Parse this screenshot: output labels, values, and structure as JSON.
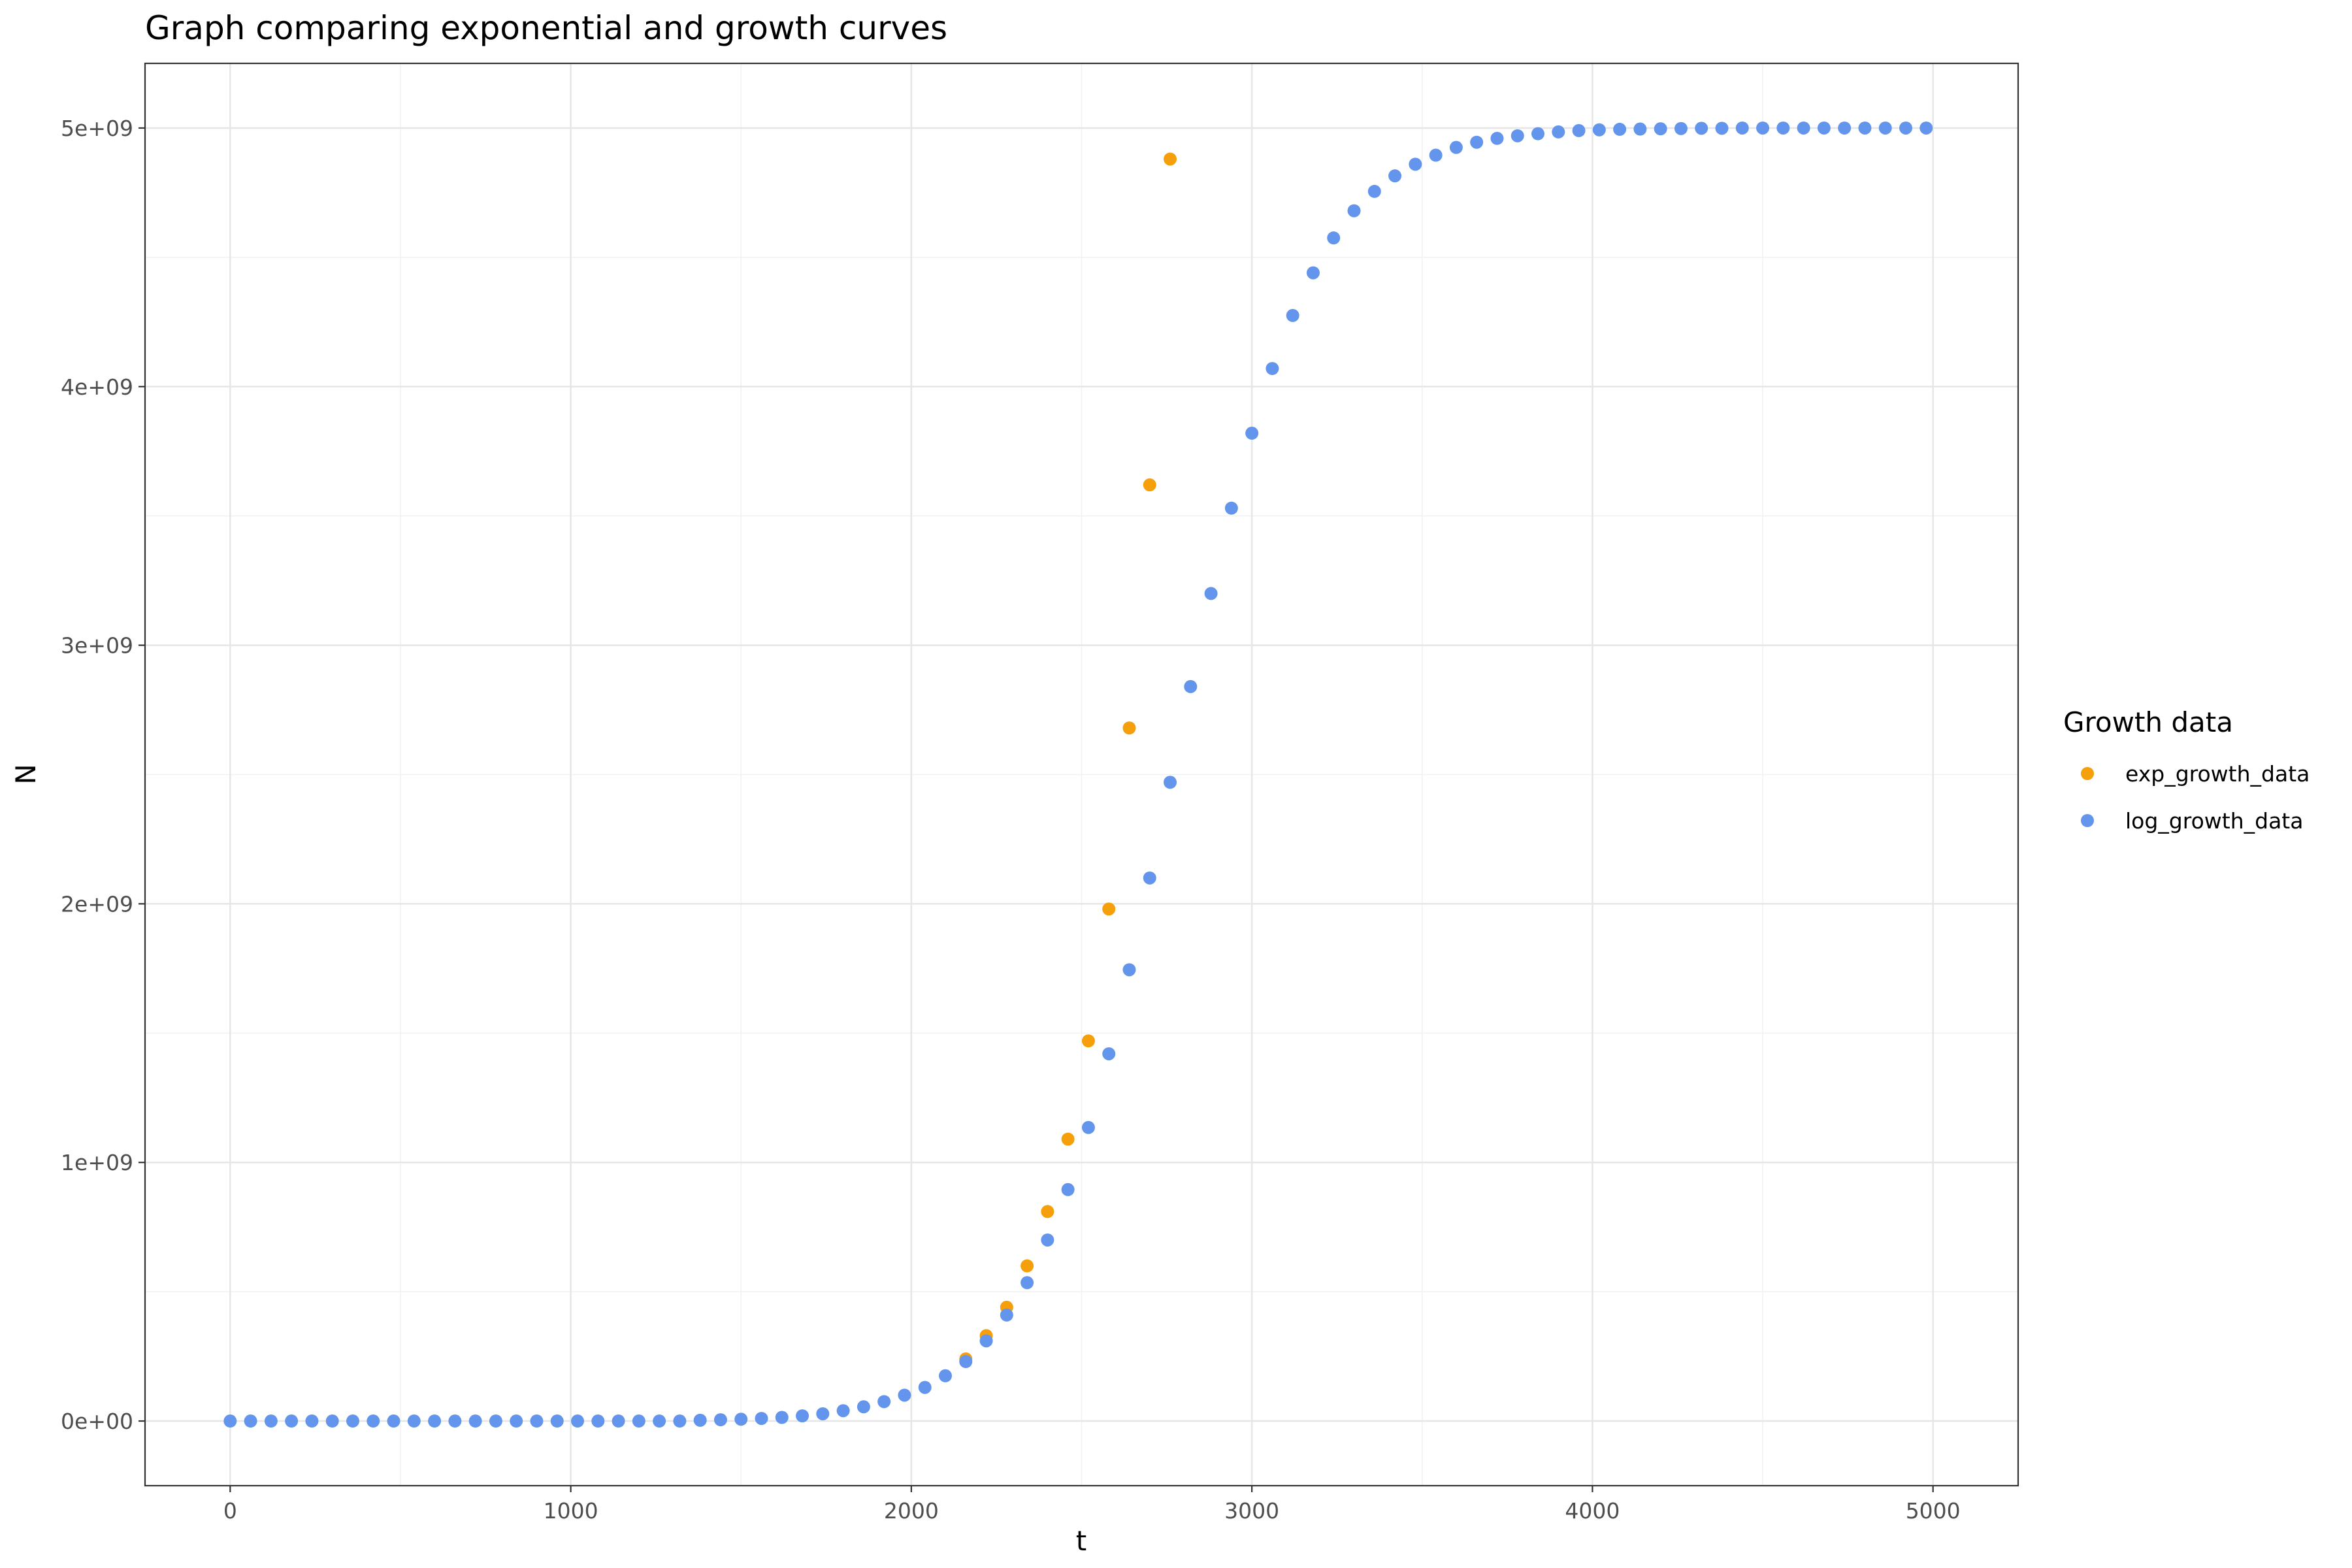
{
  "chart_data": {
    "type": "scatter",
    "title": "Graph comparing exponential and growth curves",
    "xlabel": "t",
    "ylabel": "N",
    "xlim": [
      -250,
      5250
    ],
    "ylim": [
      -250000000,
      5250000000
    ],
    "x_ticks": [
      0,
      1000,
      2000,
      3000,
      4000,
      5000
    ],
    "x_tick_labels": [
      "0",
      "1000",
      "2000",
      "3000",
      "4000",
      "5000"
    ],
    "y_ticks": [
      0,
      1000000000,
      2000000000,
      3000000000,
      4000000000,
      5000000000
    ],
    "y_tick_labels": [
      "0e+00",
      "1e+09",
      "2e+09",
      "3e+09",
      "4e+09",
      "5e+09"
    ],
    "grid": true,
    "legend": {
      "title": "Growth data",
      "position": "right"
    },
    "series": [
      {
        "name": "exp_growth_data",
        "color": "#f5a00a",
        "x": [
          2160,
          2220,
          2280,
          2340,
          2400,
          2460,
          2520,
          2580,
          2640,
          2700,
          2760
        ],
        "y": [
          240000000,
          330000000,
          440000000,
          600000000,
          810000000,
          1090000000,
          1470000000,
          1980000000,
          2680000000,
          3620000000,
          4880000000
        ]
      },
      {
        "name": "log_growth_data",
        "color": "#6495ed",
        "x": [
          0,
          60,
          120,
          180,
          240,
          300,
          360,
          420,
          480,
          540,
          600,
          660,
          720,
          780,
          840,
          900,
          960,
          1020,
          1080,
          1140,
          1200,
          1260,
          1320,
          1380,
          1440,
          1500,
          1560,
          1620,
          1680,
          1740,
          1800,
          1860,
          1920,
          1980,
          2040,
          2100,
          2160,
          2220,
          2280,
          2340,
          2400,
          2460,
          2520,
          2580,
          2640,
          2700,
          2760,
          2820,
          2880,
          2940,
          3000,
          3060,
          3120,
          3180,
          3240,
          3300,
          3360,
          3420,
          3480,
          3540,
          3600,
          3660,
          3720,
          3780,
          3840,
          3900,
          3960,
          4020,
          4080,
          4140,
          4200,
          4260,
          4320,
          4380,
          4440,
          4500,
          4560,
          4620,
          4680,
          4740,
          4800,
          4860,
          4920,
          4980
        ],
        "y": [
          0,
          0,
          0,
          0,
          0,
          0,
          0,
          0,
          0,
          0,
          0,
          0,
          0,
          0,
          0,
          0,
          0,
          0,
          0,
          0,
          0,
          0,
          0,
          3000000,
          5000000,
          7000000,
          10000000,
          14000000,
          20000000,
          28000000,
          40000000,
          55000000,
          75000000,
          100000000,
          130000000,
          175000000,
          230000000,
          310000000,
          410000000,
          535000000,
          700000000,
          895000000,
          1135000000,
          1420000000,
          1745000000,
          2100000000,
          2470000000,
          2840000000,
          3200000000,
          3530000000,
          3820000000,
          4070000000,
          4275000000,
          4440000000,
          4575000000,
          4680000000,
          4755000000,
          4815000000,
          4860000000,
          4895000000,
          4925000000,
          4945000000,
          4960000000,
          4970000000,
          4978000000,
          4985000000,
          4990000000,
          4993000000,
          4995000000,
          4996000000,
          4997000000,
          4998000000,
          4999000000,
          4999000000,
          5000000000,
          5000000000,
          5000000000,
          5000000000,
          5000000000,
          5000000000,
          5000000000,
          5000000000,
          5000000000,
          5000000000
        ]
      }
    ]
  }
}
